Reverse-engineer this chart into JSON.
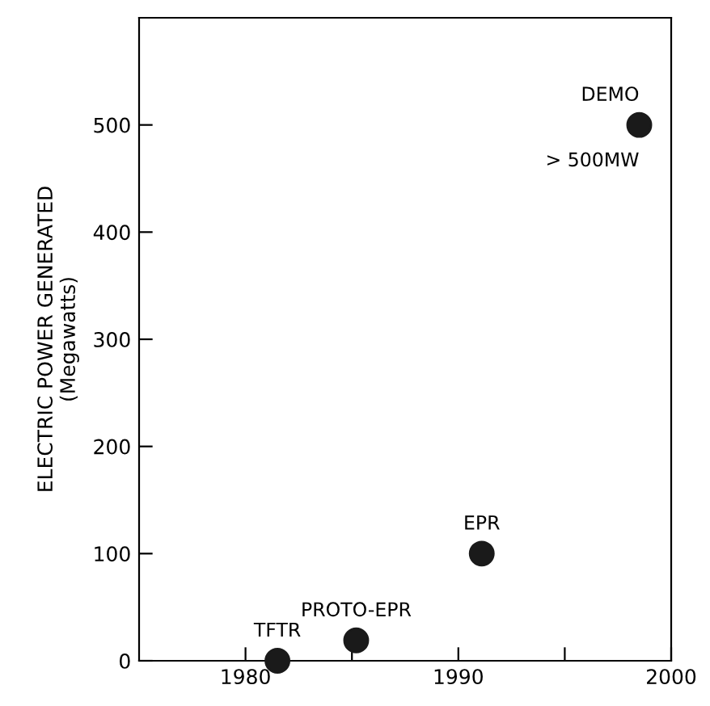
{
  "chart_data": {
    "type": "scatter",
    "ylabel": "ELECTRIC POWER GENERATED\n(Megawatts)",
    "x": [
      1981.5,
      1985.2,
      1991.1,
      1998.5
    ],
    "series": [
      {
        "color": "#1a1a1a",
        "values": [
          0,
          19,
          100,
          500
        ]
      }
    ],
    "marker": "circle",
    "grid": false,
    "legend": false,
    "xlim": [
      1975,
      2000
    ],
    "xticks": [
      1980,
      {
        "value": 1985,
        "label": null
      },
      1990,
      {
        "value": 1995,
        "label": null
      },
      2000
    ],
    "ylim": [
      0,
      600
    ],
    "yticks": [
      0,
      100,
      200,
      300,
      400,
      500
    ],
    "annotations": [
      {
        "text": "TFTR",
        "x": 1981.5,
        "y": 0
      },
      {
        "text": "PROTO-EPR",
        "x": 1985.2,
        "y": 19
      },
      {
        "text": "EPR",
        "x": 1991.1,
        "y": 100
      },
      {
        "text": "DEMO",
        "x": 1998.5,
        "y": 500
      },
      {
        "text": "> 500MW",
        "x": 1998.5,
        "y": 500
      }
    ]
  }
}
